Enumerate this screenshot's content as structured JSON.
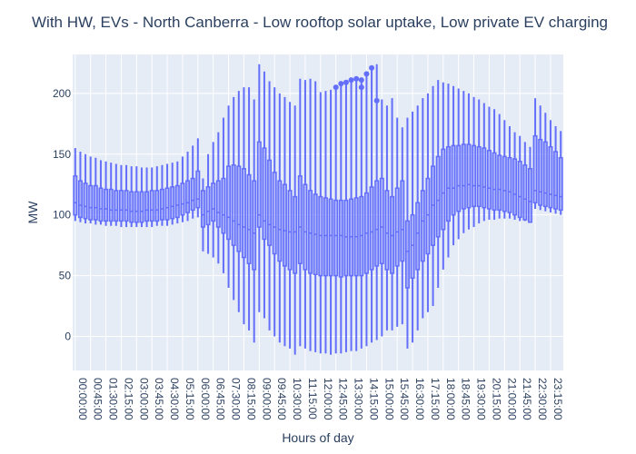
{
  "chart_data": {
    "type": "box",
    "title": "With HW, EVs - North Canberra - Low rooftop solar uptake, Low private EV charging",
    "xlabel": "Hours of day",
    "ylabel": "MW",
    "ylim": [
      -28,
      232
    ],
    "yticks": [
      0,
      50,
      100,
      150,
      200
    ],
    "grid": true,
    "colors": {
      "box": "#636efa",
      "plot_bg": "#e5ecf6",
      "grid": "#ffffff",
      "text": "#2a3f5f"
    },
    "xtick_labels": [
      "00:00:00",
      "00:45:00",
      "01:30:00",
      "02:15:00",
      "03:00:00",
      "03:45:00",
      "04:30:00",
      "05:15:00",
      "06:00:00",
      "06:45:00",
      "07:30:00",
      "08:15:00",
      "09:00:00",
      "09:45:00",
      "10:30:00",
      "11:15:00",
      "12:00:00",
      "12:45:00",
      "13:30:00",
      "14:15:00",
      "15:00:00",
      "15:45:00",
      "16:30:00",
      "17:15:00",
      "18:00:00",
      "18:45:00",
      "19:30:00",
      "20:15:00",
      "21:00:00",
      "21:45:00",
      "22:30:00",
      "23:15:00"
    ],
    "x": [
      "00:00:00",
      "00:15:00",
      "00:30:00",
      "00:45:00",
      "01:00:00",
      "01:15:00",
      "01:30:00",
      "01:45:00",
      "02:00:00",
      "02:15:00",
      "02:30:00",
      "02:45:00",
      "03:00:00",
      "03:15:00",
      "03:30:00",
      "03:45:00",
      "04:00:00",
      "04:15:00",
      "04:30:00",
      "04:45:00",
      "05:00:00",
      "05:15:00",
      "05:30:00",
      "05:45:00",
      "06:00:00",
      "06:15:00",
      "06:30:00",
      "06:45:00",
      "07:00:00",
      "07:15:00",
      "07:30:00",
      "07:45:00",
      "08:00:00",
      "08:15:00",
      "08:30:00",
      "08:45:00",
      "09:00:00",
      "09:15:00",
      "09:30:00",
      "09:45:00",
      "10:00:00",
      "10:15:00",
      "10:30:00",
      "10:45:00",
      "11:00:00",
      "11:15:00",
      "11:30:00",
      "11:45:00",
      "12:00:00",
      "12:15:00",
      "12:30:00",
      "12:45:00",
      "13:00:00",
      "13:15:00",
      "13:30:00",
      "13:45:00",
      "14:00:00",
      "14:15:00",
      "14:30:00",
      "14:45:00",
      "15:00:00",
      "15:15:00",
      "15:30:00",
      "15:45:00",
      "16:00:00",
      "16:15:00",
      "16:30:00",
      "16:45:00",
      "17:00:00",
      "17:15:00",
      "17:30:00",
      "17:45:00",
      "18:00:00",
      "18:15:00",
      "18:30:00",
      "18:45:00",
      "19:00:00",
      "19:15:00",
      "19:30:00",
      "19:45:00",
      "20:00:00",
      "20:15:00",
      "20:30:00",
      "20:45:00",
      "21:00:00",
      "21:15:00",
      "21:30:00",
      "21:45:00",
      "22:00:00",
      "22:15:00",
      "22:30:00",
      "22:45:00",
      "23:00:00",
      "23:15:00",
      "23:30:00",
      "23:45:00"
    ],
    "series": [
      {
        "min": [
          95,
          94,
          93,
          93,
          92,
          92,
          91,
          91,
          91,
          90,
          90,
          90,
          90,
          90,
          90,
          90,
          91,
          91,
          91,
          92,
          93,
          94,
          95,
          97,
          98,
          70,
          68,
          65,
          60,
          52,
          40,
          30,
          20,
          10,
          5,
          -5,
          20,
          15,
          5,
          0,
          -5,
          -8,
          -10,
          -15,
          -8,
          -10,
          -12,
          -13,
          -14,
          -14,
          -15,
          -14,
          -14,
          -13,
          -12,
          -12,
          -10,
          -8,
          -5,
          -3,
          0,
          5,
          5,
          8,
          10,
          -10,
          -5,
          5,
          15,
          20,
          25,
          40,
          55,
          65,
          75,
          80,
          85,
          88,
          90,
          93,
          95,
          96,
          96,
          97,
          97,
          97,
          96,
          95,
          95,
          94,
          105,
          104,
          103,
          102,
          101,
          100,
          99,
          100
        ],
        "q1": [
          100,
          98,
          97,
          96,
          96,
          95,
          95,
          95,
          95,
          95,
          95,
          94,
          94,
          94,
          95,
          95,
          95,
          96,
          96,
          97,
          98,
          100,
          102,
          104,
          106,
          90,
          92,
          95,
          90,
          85,
          80,
          75,
          70,
          65,
          60,
          55,
          90,
          80,
          75,
          68,
          62,
          58,
          55,
          52,
          60,
          55,
          52,
          51,
          50,
          50,
          50,
          50,
          49,
          50,
          50,
          50,
          50,
          52,
          55,
          58,
          60,
          55,
          52,
          58,
          62,
          40,
          48,
          55,
          62,
          68,
          75,
          82,
          88,
          95,
          100,
          103,
          105,
          106,
          107,
          107,
          106,
          105,
          104,
          104,
          103,
          102,
          100,
          98,
          96,
          94,
          110,
          108,
          107,
          106,
          105,
          104,
          103,
          105
        ],
        "median": [
          110,
          108,
          107,
          106,
          106,
          105,
          105,
          104,
          104,
          104,
          104,
          103,
          103,
          103,
          104,
          104,
          104,
          105,
          106,
          107,
          108,
          109,
          110,
          112,
          113,
          100,
          103,
          105,
          102,
          100,
          98,
          95,
          92,
          90,
          88,
          85,
          100,
          95,
          92,
          90,
          88,
          87,
          86,
          86,
          90,
          86,
          85,
          84,
          83,
          83,
          83,
          83,
          83,
          82,
          82,
          82,
          83,
          85,
          86,
          88,
          90,
          85,
          83,
          86,
          88,
          70,
          75,
          85,
          95,
          100,
          108,
          112,
          118,
          122,
          122,
          124,
          124,
          125,
          124,
          124,
          123,
          122,
          121,
          121,
          120,
          119,
          117,
          115,
          113,
          111,
          120,
          119,
          118,
          117,
          116,
          115,
          114,
          115
        ],
        "q3": [
          132,
          128,
          126,
          124,
          124,
          122,
          121,
          121,
          120,
          120,
          120,
          119,
          119,
          119,
          119,
          120,
          120,
          121,
          122,
          123,
          124,
          126,
          128,
          130,
          136,
          120,
          123,
          126,
          128,
          130,
          140,
          141,
          140,
          138,
          133,
          128,
          160,
          155,
          145,
          135,
          128,
          125,
          120,
          115,
          132,
          125,
          120,
          117,
          115,
          114,
          113,
          112,
          112,
          112,
          113,
          114,
          115,
          118,
          123,
          128,
          130,
          120,
          115,
          122,
          128,
          95,
          100,
          110,
          120,
          130,
          140,
          148,
          154,
          156,
          157,
          157,
          158,
          158,
          157,
          156,
          155,
          153,
          151,
          149,
          148,
          147,
          146,
          144,
          141,
          138,
          165,
          162,
          160,
          156,
          152,
          147,
          142,
          139
        ],
        "max": [
          155,
          152,
          150,
          148,
          147,
          145,
          144,
          143,
          142,
          141,
          141,
          140,
          140,
          139,
          139,
          139,
          140,
          141,
          142,
          143,
          144,
          148,
          152,
          157,
          163,
          130,
          150,
          160,
          168,
          180,
          190,
          197,
          202,
          205,
          205,
          195,
          224,
          218,
          210,
          205,
          200,
          197,
          193,
          190,
          212,
          211,
          212,
          210,
          201,
          202,
          203,
          205,
          209,
          210,
          211,
          213,
          210,
          215,
          220,
          224,
          195,
          190,
          196,
          180,
          172,
          180,
          185,
          190,
          196,
          200,
          206,
          211,
          209,
          208,
          206,
          204,
          202,
          200,
          197,
          195,
          192,
          189,
          187,
          183,
          178,
          173,
          168,
          165,
          160,
          156,
          196,
          190,
          184,
          178,
          173,
          169,
          165,
          164
        ]
      }
    ],
    "outliers": [
      {
        "x": "12:45:00",
        "y": 205
      },
      {
        "x": "13:00:00",
        "y": 208
      },
      {
        "x": "13:15:00",
        "y": 209
      },
      {
        "x": "13:30:00",
        "y": 211
      },
      {
        "x": "13:45:00",
        "y": 212
      },
      {
        "x": "14:00:00",
        "y": 205
      },
      {
        "x": "14:00:00",
        "y": 211
      },
      {
        "x": "14:15:00",
        "y": 216
      },
      {
        "x": "14:30:00",
        "y": 221
      },
      {
        "x": "14:45:00",
        "y": 194
      }
    ]
  }
}
